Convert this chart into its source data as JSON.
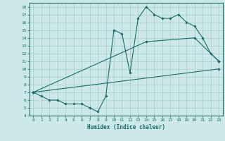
{
  "bg_color": "#cce8e8",
  "line_color": "#1a6b6b",
  "grid_color": "#a8cccc",
  "line1_x": [
    0,
    1,
    2,
    3,
    4,
    5,
    6,
    7,
    8,
    9,
    10,
    11,
    12,
    13,
    14,
    15,
    16,
    17,
    18,
    19,
    20,
    21,
    22,
    23
  ],
  "line1_y": [
    7,
    6.5,
    6,
    6,
    5.5,
    5.5,
    5.5,
    5,
    4.5,
    6.5,
    15,
    14.5,
    9.5,
    16.5,
    18,
    17,
    16.5,
    16.5,
    17,
    16,
    15.5,
    14,
    12,
    11
  ],
  "line2_x": [
    0,
    14,
    20,
    23
  ],
  "line2_y": [
    7,
    13.5,
    14,
    11
  ],
  "line3_x": [
    0,
    23
  ],
  "line3_y": [
    7,
    10
  ],
  "xlim": [
    -0.5,
    23.5
  ],
  "ylim": [
    4,
    18.5
  ],
  "yticks": [
    4,
    5,
    6,
    7,
    8,
    9,
    10,
    11,
    12,
    13,
    14,
    15,
    16,
    17,
    18
  ],
  "xticks": [
    0,
    1,
    2,
    3,
    4,
    5,
    6,
    7,
    8,
    9,
    10,
    11,
    12,
    13,
    14,
    15,
    16,
    17,
    18,
    19,
    20,
    21,
    22,
    23
  ],
  "xlabel": "Humidex (Indice chaleur)",
  "marker": "D",
  "marker_size": 1.8,
  "linewidth": 0.8,
  "tick_fontsize": 4.5,
  "xlabel_fontsize": 5.5
}
